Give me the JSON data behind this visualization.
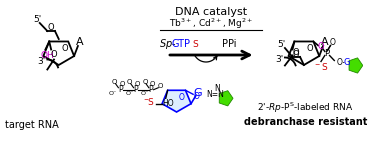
{
  "bg_color": "#ffffff",
  "figwidth": 3.78,
  "figheight": 1.42,
  "dpi": 100,
  "title_text": "DNA catalyst",
  "metal_ions": "Tb$^{3+}$, Cd$^{2+}$, Mg$^{2+}$",
  "ppi_label": "PPi",
  "left_label": "target RNA",
  "right_label1": "2’-­Rp-Pˢ-labeled RNA",
  "right_label2": "debranchase resistant",
  "arrow_color": "#000000",
  "blue_color": "#0000ff",
  "red_color": "#cc0000",
  "magenta_color": "#cc00cc",
  "green_color": "#44dd00"
}
